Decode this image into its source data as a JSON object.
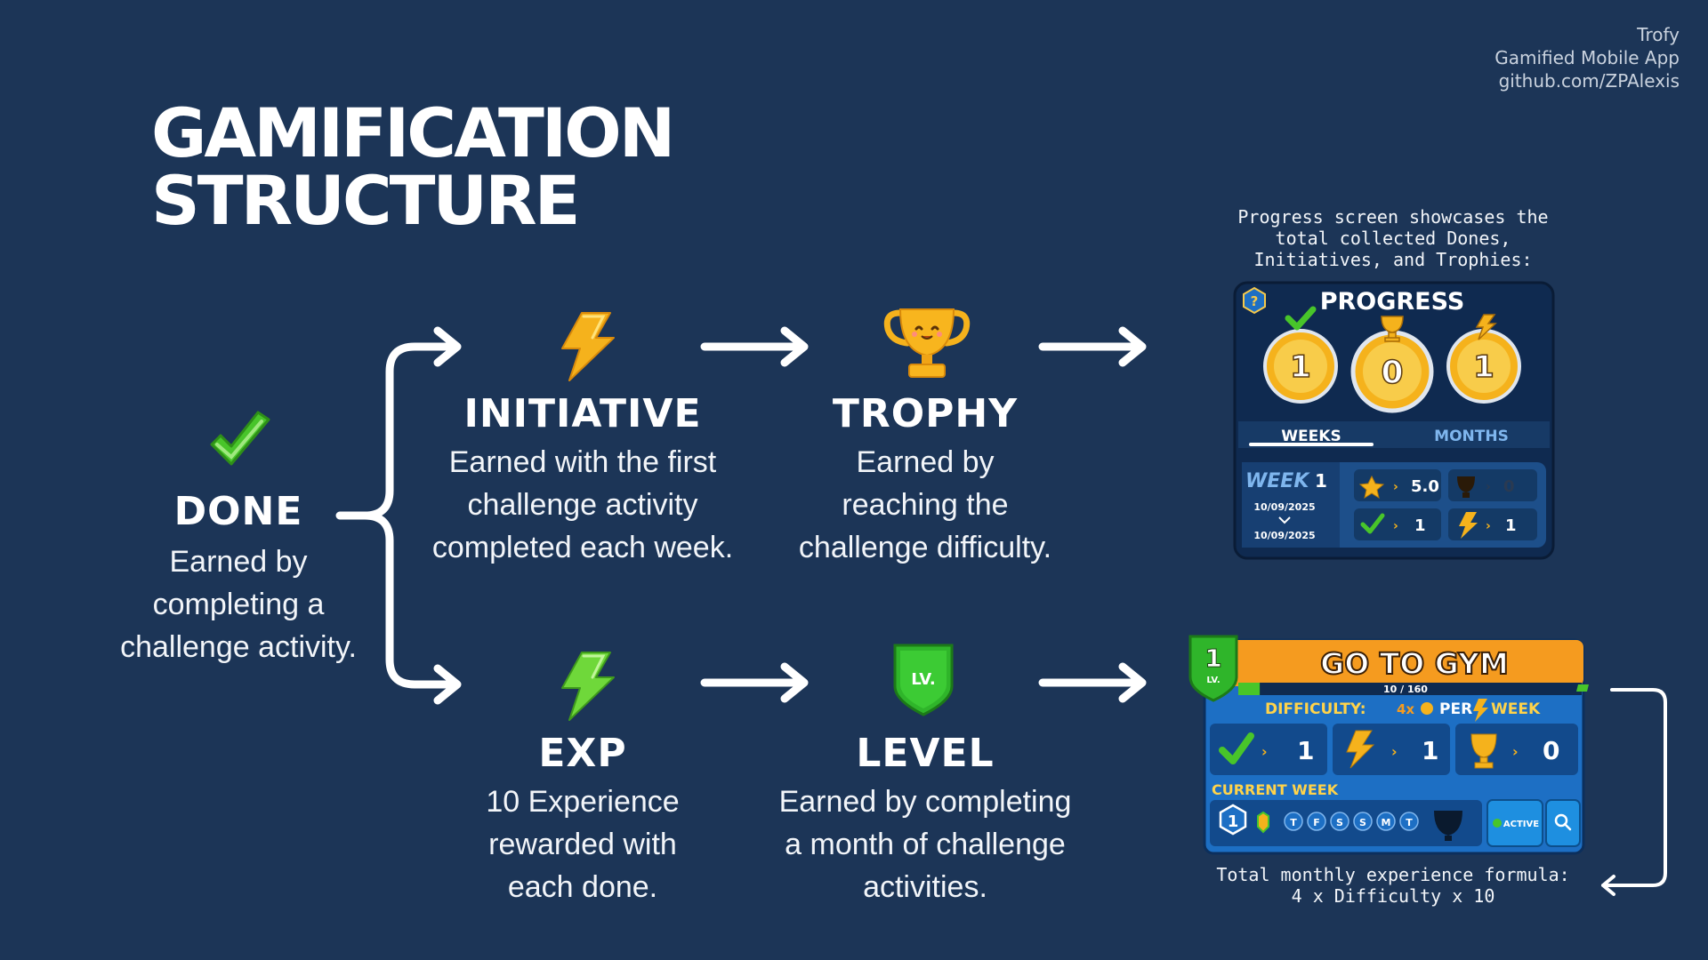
{
  "credit": {
    "app": "Trofy",
    "subtitle": "Gamified Mobile App",
    "link": "github.com/ZPAlexis"
  },
  "title": {
    "line1": "GAMIFICATION",
    "line2": "STRUCTURE"
  },
  "nodes": {
    "done": {
      "title": "DONE",
      "desc": [
        "Earned by",
        "completing a",
        "challenge activity."
      ]
    },
    "initiative": {
      "title": "INITIATIVE",
      "desc": [
        "Earned with the first",
        "challenge activity",
        "completed each week."
      ]
    },
    "trophy": {
      "title": "TROPHY",
      "desc": [
        "Earned by",
        "reaching the",
        "challenge difficulty."
      ]
    },
    "exp": {
      "title": "EXP",
      "desc": [
        "10 Experience",
        "rewarded with",
        "each done."
      ]
    },
    "level": {
      "title": "LEVEL",
      "desc": [
        "Earned by completing",
        "a month of challenge",
        "activities."
      ]
    }
  },
  "progress_note": [
    "Progress screen showcases the",
    "total collected Dones,",
    "Initiatives, and Trophies:"
  ],
  "progress_card": {
    "title": "PROGRESS",
    "help": "?",
    "counts": {
      "done": "1",
      "trophy": "0",
      "initiative": "1"
    },
    "tabs": {
      "weeks": "WEEKS",
      "months": "MONTHS"
    },
    "week_label": "WEEK",
    "week_number": "1",
    "date_from": "10/09/2025",
    "date_to": "10/09/2025",
    "stats": {
      "stars": "5.0",
      "trophy": "0",
      "done": "1",
      "initiative": "1"
    },
    "arrow": "›"
  },
  "level_badge": "LV.",
  "gym_card": {
    "level": "1",
    "level_label": "LV.",
    "title": "GO TO GYM",
    "progress": "10 / 160",
    "progress_fraction": 0.0625,
    "difficulty_label": "DIFFICULTY:",
    "difficulty_value": "4x",
    "per_label": "PER",
    "week_label": "WEEK",
    "counts": {
      "done": "1",
      "initiative": "1",
      "trophy": "0"
    },
    "current_week_label": "CURRENT WEEK",
    "week_number": "1",
    "days": [
      "T",
      "F",
      "S",
      "S",
      "M",
      "T"
    ],
    "active_label": "ACTIVE"
  },
  "formula_note": [
    "Total monthly experience formula:",
    "4 x Difficulty x 10"
  ],
  "colors": {
    "background": "#1c3557",
    "green": "#48c52a",
    "gold": "#f5b21c",
    "orange": "#f59b1f",
    "card_blue": "#1d6fc4",
    "progress_navy": "#0f2a50"
  }
}
